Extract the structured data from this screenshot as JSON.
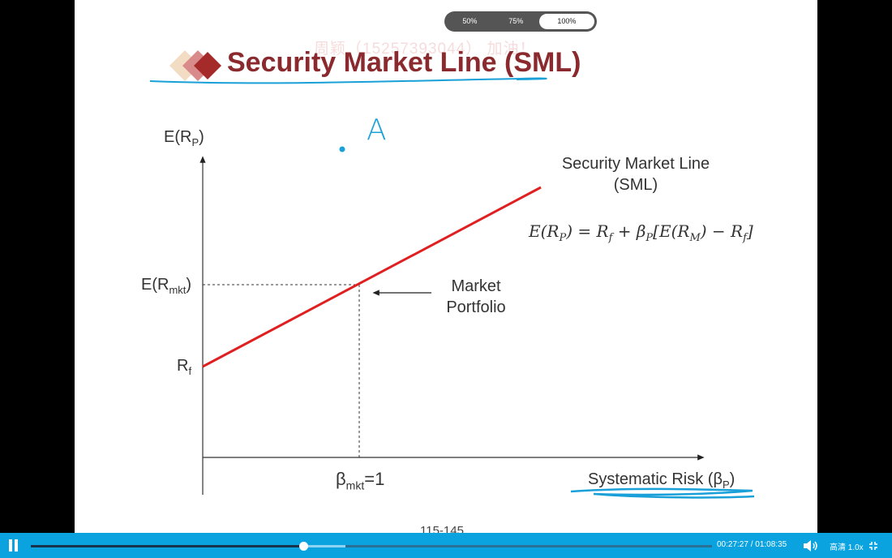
{
  "zoom_options": [
    "50%",
    "75%",
    "100%"
  ],
  "zoom_selected": "100%",
  "watermark": "周颖（15257393044） 加油！",
  "slide": {
    "title": "Security Market Line (SML)",
    "annotation_letter": "A",
    "y_axis_label": "E(R",
    "y_axis_sub": "P",
    "y_axis_close": ")",
    "y_tick_market": "E(R",
    "y_tick_market_sub": "mkt",
    "y_tick_market_close": ")",
    "y_tick_rf": "R",
    "y_tick_rf_sub": "f",
    "sml_label_line1": "Security Market Line",
    "sml_label_line2": "(SML)",
    "formula": "E(R_P) = R_f + β_P[E(R_M) − R_f]",
    "market_portfolio_line1": "Market",
    "market_portfolio_line2": "Portfolio",
    "x_tick_beta": "β",
    "x_tick_beta_sub": "mkt",
    "x_tick_beta_val": "=1",
    "x_axis_label": "Systematic Risk (β",
    "x_axis_sub": "P",
    "x_axis_close": ")",
    "page_number": "115-145"
  },
  "chart_data": {
    "type": "line",
    "title": "Security Market Line (SML)",
    "xlabel": "Systematic Risk (βP)",
    "ylabel": "E(RP)",
    "x_ticks": [
      "βmkt=1"
    ],
    "y_ticks": [
      "Rf",
      "E(Rmkt)"
    ],
    "series": [
      {
        "name": "Security Market Line (SML)",
        "x": [
          0,
          1
        ],
        "y": [
          "Rf",
          "E(Rmkt)"
        ],
        "color": "#e02020"
      }
    ],
    "annotations": [
      "Market Portfolio"
    ]
  },
  "player": {
    "progress_fraction": 0.4,
    "buffered_fraction": 0.462,
    "current_time": "00:27:27",
    "separator": " / ",
    "duration": "01:08:35",
    "quality": "高清",
    "speed": "1.0x"
  },
  "colors": {
    "title": "#8b2a2e",
    "sml_line": "#e02020",
    "annotation_blue": "#1aa0d8",
    "controls_bar": "#0aa3e0"
  }
}
